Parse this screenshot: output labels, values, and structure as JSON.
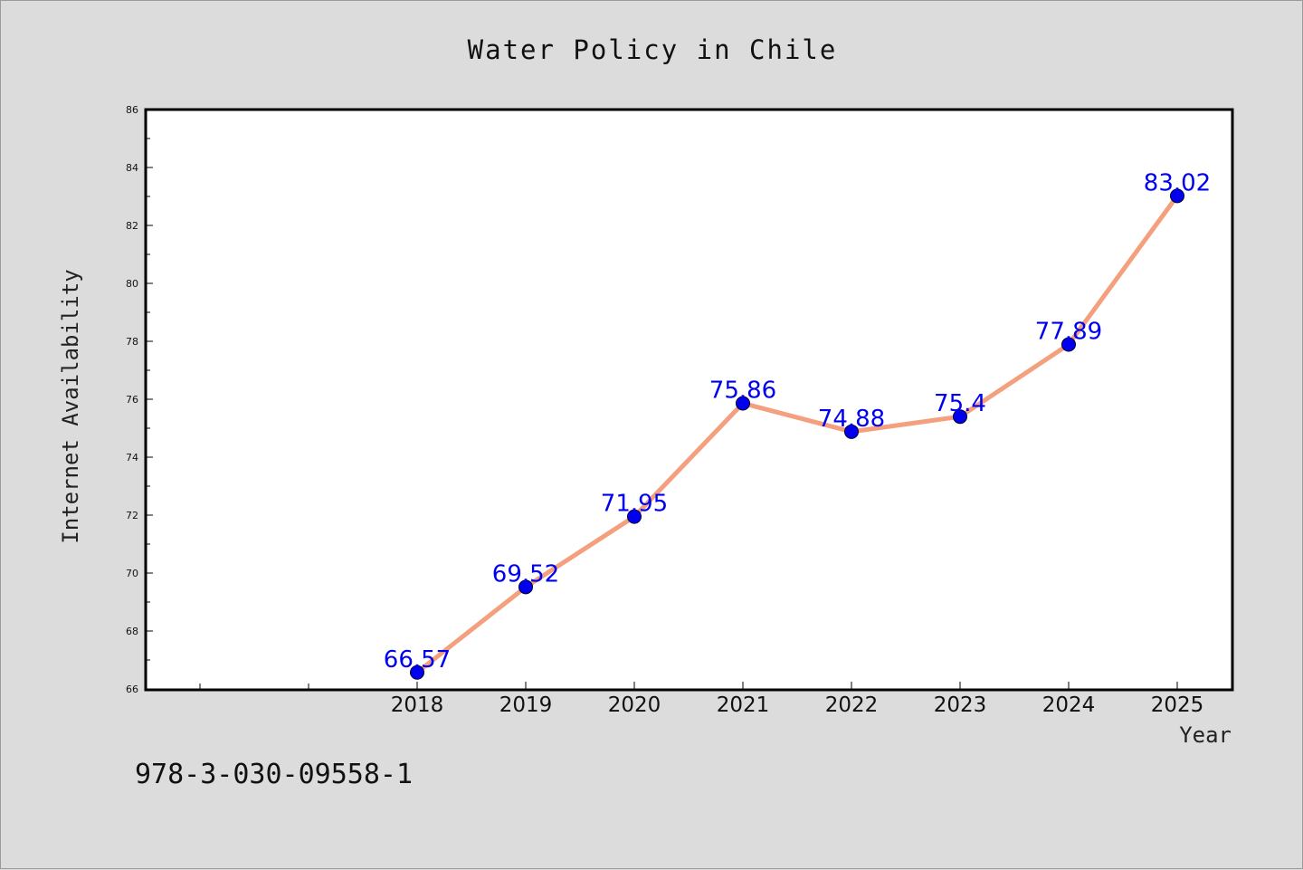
{
  "chart_data": {
    "type": "line",
    "title": "Water Policy in Chile",
    "xlabel": "Year",
    "ylabel": "Internet Availability",
    "x": [
      "2018",
      "2019",
      "2020",
      "2021",
      "2022",
      "2023",
      "2024",
      "2025"
    ],
    "series": [
      {
        "values": [
          66.57,
          69.52,
          71.95,
          75.86,
          74.88,
          75.4,
          77.89,
          83.02
        ],
        "labels": [
          "66.57",
          "69.52",
          "71.95",
          "75.86",
          "74.88",
          "75.4",
          "77.89",
          "83.02"
        ]
      }
    ],
    "ylim": [
      66,
      86
    ],
    "yticks": [
      "66",
      "68",
      "70",
      "72",
      "74",
      "76",
      "78",
      "80",
      "82",
      "84",
      "86"
    ],
    "grid": false,
    "line_color": "#f4a07e",
    "marker_color": "#0000ee",
    "label_color": "#0000ee"
  },
  "footnote": "978-3-030-09558-1"
}
